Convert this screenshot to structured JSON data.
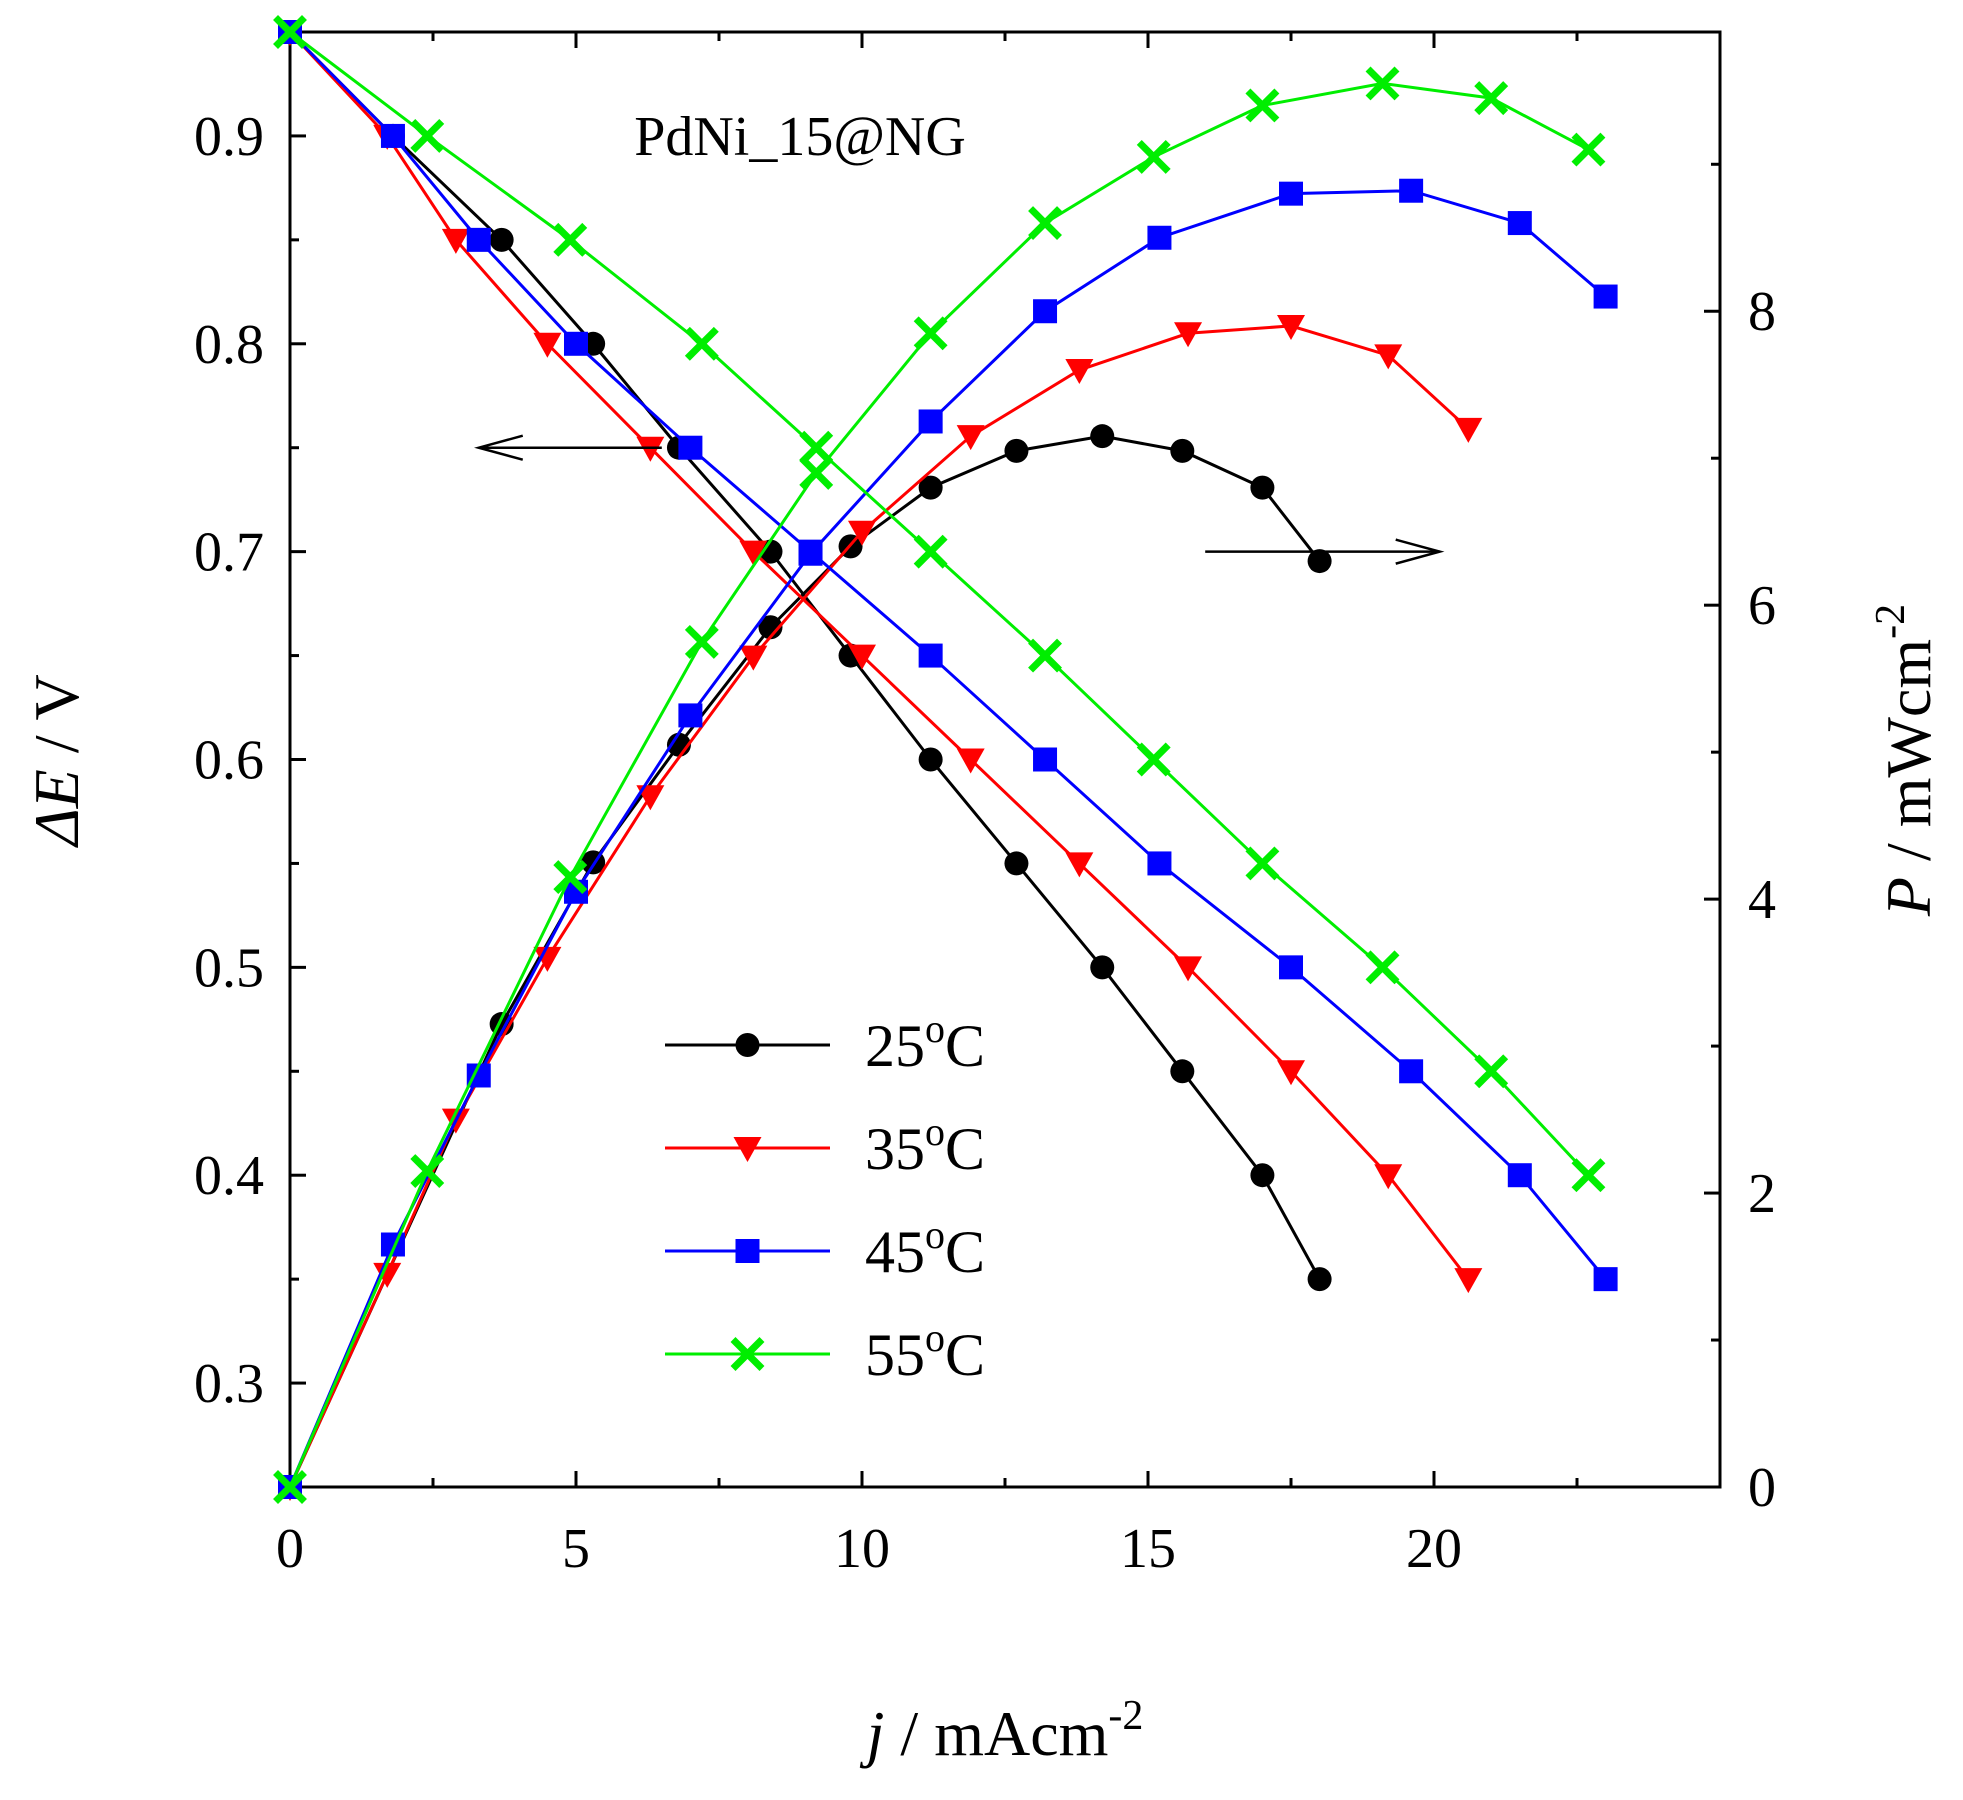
{
  "chart_data": {
    "type": "line",
    "title": "PdNi_15@NG",
    "xlabel": {
      "italic": "j",
      "text": " / mAcm",
      "sup": "-2"
    },
    "ylabel_left": {
      "italic": "ΔE",
      "text": " / V"
    },
    "ylabel_right": {
      "italic": "P",
      "text": " / mWcm",
      "sup": "-2"
    },
    "xlim": [
      0,
      25
    ],
    "ylim_left": [
      0.25,
      0.95
    ],
    "ylim_right": [
      0,
      9.9
    ],
    "x_ticks": [
      0,
      5,
      10,
      15,
      20
    ],
    "y_left_ticks": [
      0.3,
      0.4,
      0.5,
      0.6,
      0.7,
      0.8,
      0.9
    ],
    "y_right_ticks": [
      0,
      2,
      4,
      6,
      8
    ],
    "legend_position": "lower-center",
    "series": [
      {
        "name": "25oC",
        "temp": "25",
        "unit": "C",
        "sup": "o",
        "color": "#000000",
        "marker": "circle",
        "voltage": {
          "x": [
            0,
            1.8,
            3.7,
            5.3,
            6.8,
            8.4,
            9.8,
            11.2,
            12.7,
            14.2,
            15.6,
            17.0,
            18.0
          ],
          "y": [
            0.95,
            0.9,
            0.85,
            0.8,
            0.75,
            0.7,
            0.65,
            0.6,
            0.55,
            0.5,
            0.45,
            0.4,
            0.35
          ]
        },
        "power": {
          "x": [
            0,
            3.7,
            5.3,
            6.8,
            8.4,
            9.8,
            11.2,
            12.7,
            14.2,
            15.6,
            17.0,
            18.0
          ],
          "y": [
            0,
            3.15,
            4.25,
            5.05,
            5.85,
            6.4,
            6.8,
            7.05,
            7.15,
            7.05,
            6.8,
            6.3
          ]
        }
      },
      {
        "name": "35oC",
        "temp": "35",
        "unit": "C",
        "sup": "o",
        "color": "#ff0000",
        "marker": "triangle-down",
        "voltage": {
          "x": [
            0,
            1.7,
            2.9,
            4.5,
            6.3,
            8.1,
            10.0,
            11.9,
            13.8,
            15.7,
            17.5,
            19.2,
            20.6
          ],
          "y": [
            0.95,
            0.9,
            0.85,
            0.8,
            0.75,
            0.7,
            0.65,
            0.6,
            0.55,
            0.5,
            0.45,
            0.4,
            0.35
          ]
        },
        "power": {
          "x": [
            0,
            1.7,
            2.9,
            4.5,
            6.3,
            8.1,
            10.0,
            11.9,
            13.8,
            15.7,
            17.5,
            19.2,
            20.6
          ],
          "y": [
            0,
            1.45,
            2.5,
            3.6,
            4.7,
            5.65,
            6.5,
            7.15,
            7.6,
            7.85,
            7.9,
            7.7,
            7.2
          ]
        }
      },
      {
        "name": "45oC",
        "temp": "45",
        "unit": "C",
        "sup": "o",
        "color": "#0000ff",
        "marker": "square",
        "voltage": {
          "x": [
            0,
            1.8,
            3.3,
            5.0,
            7.0,
            9.1,
            11.2,
            13.2,
            15.2,
            17.5,
            19.6,
            21.5,
            23.0
          ],
          "y": [
            0.95,
            0.9,
            0.85,
            0.8,
            0.75,
            0.7,
            0.65,
            0.6,
            0.55,
            0.5,
            0.45,
            0.4,
            0.35
          ]
        },
        "power": {
          "x": [
            0,
            1.8,
            3.3,
            5.0,
            7.0,
            9.1,
            11.2,
            13.2,
            15.2,
            17.5,
            19.6,
            21.5,
            23.0
          ],
          "y": [
            0,
            1.65,
            2.8,
            4.05,
            5.25,
            6.35,
            7.25,
            8.0,
            8.5,
            8.8,
            8.82,
            8.6,
            8.1
          ]
        }
      },
      {
        "name": "55oC",
        "temp": "55",
        "unit": "C",
        "sup": "o",
        "color": "#00ee00",
        "marker": "x",
        "voltage": {
          "x": [
            0,
            2.4,
            4.9,
            7.2,
            9.2,
            11.2,
            13.2,
            15.1,
            17.0,
            19.1,
            21.0,
            22.7
          ],
          "y": [
            0.95,
            0.9,
            0.85,
            0.8,
            0.75,
            0.7,
            0.65,
            0.6,
            0.55,
            0.5,
            0.45,
            0.4
          ]
        },
        "power": {
          "x": [
            0,
            2.4,
            4.9,
            7.2,
            9.2,
            11.2,
            13.2,
            15.1,
            17.0,
            19.1,
            21.0,
            22.7
          ],
          "y": [
            0,
            2.15,
            4.15,
            5.75,
            6.9,
            7.85,
            8.6,
            9.05,
            9.4,
            9.55,
            9.45,
            9.1
          ]
        }
      }
    ],
    "arrows": [
      {
        "name": "left-axis-arrow",
        "from": [
          6.5,
          0.75
        ],
        "to": [
          3.3,
          0.75
        ],
        "axis": "left"
      },
      {
        "name": "right-axis-arrow",
        "from": [
          16.0,
          0.7
        ],
        "to": [
          20.1,
          0.7
        ],
        "axis": "left"
      }
    ]
  }
}
